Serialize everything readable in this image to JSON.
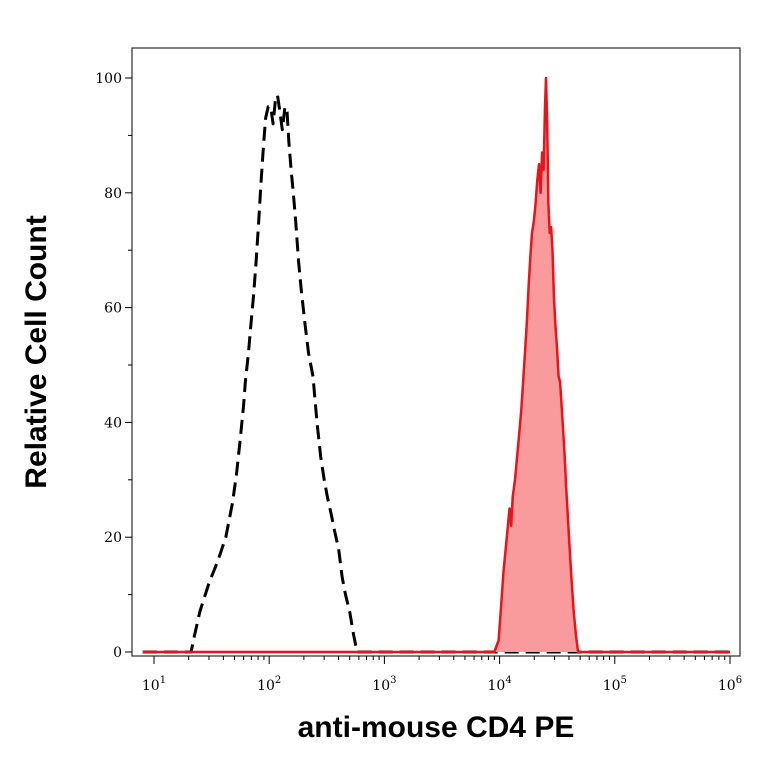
{
  "chart_data": {
    "type": "area",
    "xlabel": "anti-mouse CD4 PE",
    "ylabel": "Relative Cell Count",
    "x_scale": "log",
    "xlim": [
      10,
      1000000
    ],
    "ylim": [
      0,
      100
    ],
    "x_ticks": [
      {
        "base": "10",
        "exp": "1",
        "value": 10
      },
      {
        "base": "10",
        "exp": "2",
        "value": 100
      },
      {
        "base": "10",
        "exp": "3",
        "value": 1000
      },
      {
        "base": "10",
        "exp": "4",
        "value": 10000
      },
      {
        "base": "10",
        "exp": "5",
        "value": 100000
      },
      {
        "base": "10",
        "exp": "6",
        "value": 1000000
      }
    ],
    "y_ticks": [
      "0",
      "20",
      "40",
      "60",
      "80",
      "100"
    ],
    "grid": false,
    "series": [
      {
        "style": "dashed-line",
        "color": "#000000",
        "fill": "none",
        "points": [
          [
            8,
            0
          ],
          [
            19,
            0
          ],
          [
            21,
            0
          ],
          [
            22,
            2
          ],
          [
            25,
            7
          ],
          [
            30,
            12
          ],
          [
            36,
            16
          ],
          [
            42,
            20
          ],
          [
            48,
            26
          ],
          [
            52,
            31
          ],
          [
            56,
            37
          ],
          [
            60,
            43
          ],
          [
            62,
            47
          ],
          [
            66,
            52
          ],
          [
            70,
            58
          ],
          [
            73,
            62
          ],
          [
            77,
            68
          ],
          [
            81,
            75
          ],
          [
            85,
            82
          ],
          [
            89,
            88
          ],
          [
            93,
            93
          ],
          [
            98,
            95
          ],
          [
            103,
            95
          ],
          [
            108,
            92
          ],
          [
            113,
            96
          ],
          [
            118,
            97
          ],
          [
            124,
            94
          ],
          [
            130,
            91
          ],
          [
            137,
            95
          ],
          [
            143,
            94
          ],
          [
            148,
            89
          ],
          [
            155,
            84
          ],
          [
            162,
            80
          ],
          [
            170,
            75
          ],
          [
            180,
            68
          ],
          [
            190,
            63
          ],
          [
            205,
            57
          ],
          [
            220,
            52
          ],
          [
            240,
            48
          ],
          [
            260,
            40
          ],
          [
            280,
            34
          ],
          [
            300,
            30
          ],
          [
            320,
            27
          ],
          [
            345,
            24
          ],
          [
            370,
            21
          ],
          [
            400,
            18
          ],
          [
            430,
            13
          ],
          [
            460,
            10
          ],
          [
            500,
            7
          ],
          [
            540,
            3
          ],
          [
            580,
            0
          ],
          [
            1000000,
            0
          ]
        ]
      },
      {
        "style": "filled-area",
        "color": "#e8141c",
        "fill": "#f99a9d",
        "points": [
          [
            8,
            0
          ],
          [
            9000,
            0
          ],
          [
            9800,
            2
          ],
          [
            10300,
            8
          ],
          [
            10800,
            14
          ],
          [
            11300,
            18
          ],
          [
            11800,
            22
          ],
          [
            12200,
            25
          ],
          [
            12600,
            22
          ],
          [
            13000,
            27
          ],
          [
            13600,
            30
          ],
          [
            14200,
            34
          ],
          [
            14800,
            38
          ],
          [
            15400,
            42
          ],
          [
            16000,
            47
          ],
          [
            16700,
            53
          ],
          [
            17300,
            58
          ],
          [
            17900,
            64
          ],
          [
            18500,
            69
          ],
          [
            19100,
            73
          ],
          [
            19800,
            75
          ],
          [
            20500,
            78
          ],
          [
            21200,
            82
          ],
          [
            22000,
            85
          ],
          [
            22700,
            80
          ],
          [
            23400,
            87
          ],
          [
            24100,
            84
          ],
          [
            24800,
            95
          ],
          [
            25300,
            100
          ],
          [
            25900,
            92
          ],
          [
            26500,
            78
          ],
          [
            27200,
            73
          ],
          [
            28000,
            74
          ],
          [
            28800,
            70
          ],
          [
            29600,
            62
          ],
          [
            30500,
            57
          ],
          [
            31500,
            53
          ],
          [
            32500,
            48
          ],
          [
            33500,
            47
          ],
          [
            35000,
            41
          ],
          [
            36500,
            35
          ],
          [
            38000,
            28
          ],
          [
            40000,
            20
          ],
          [
            42000,
            13
          ],
          [
            44000,
            7
          ],
          [
            46000,
            3
          ],
          [
            48000,
            0
          ],
          [
            1000000,
            0
          ]
        ]
      }
    ]
  }
}
